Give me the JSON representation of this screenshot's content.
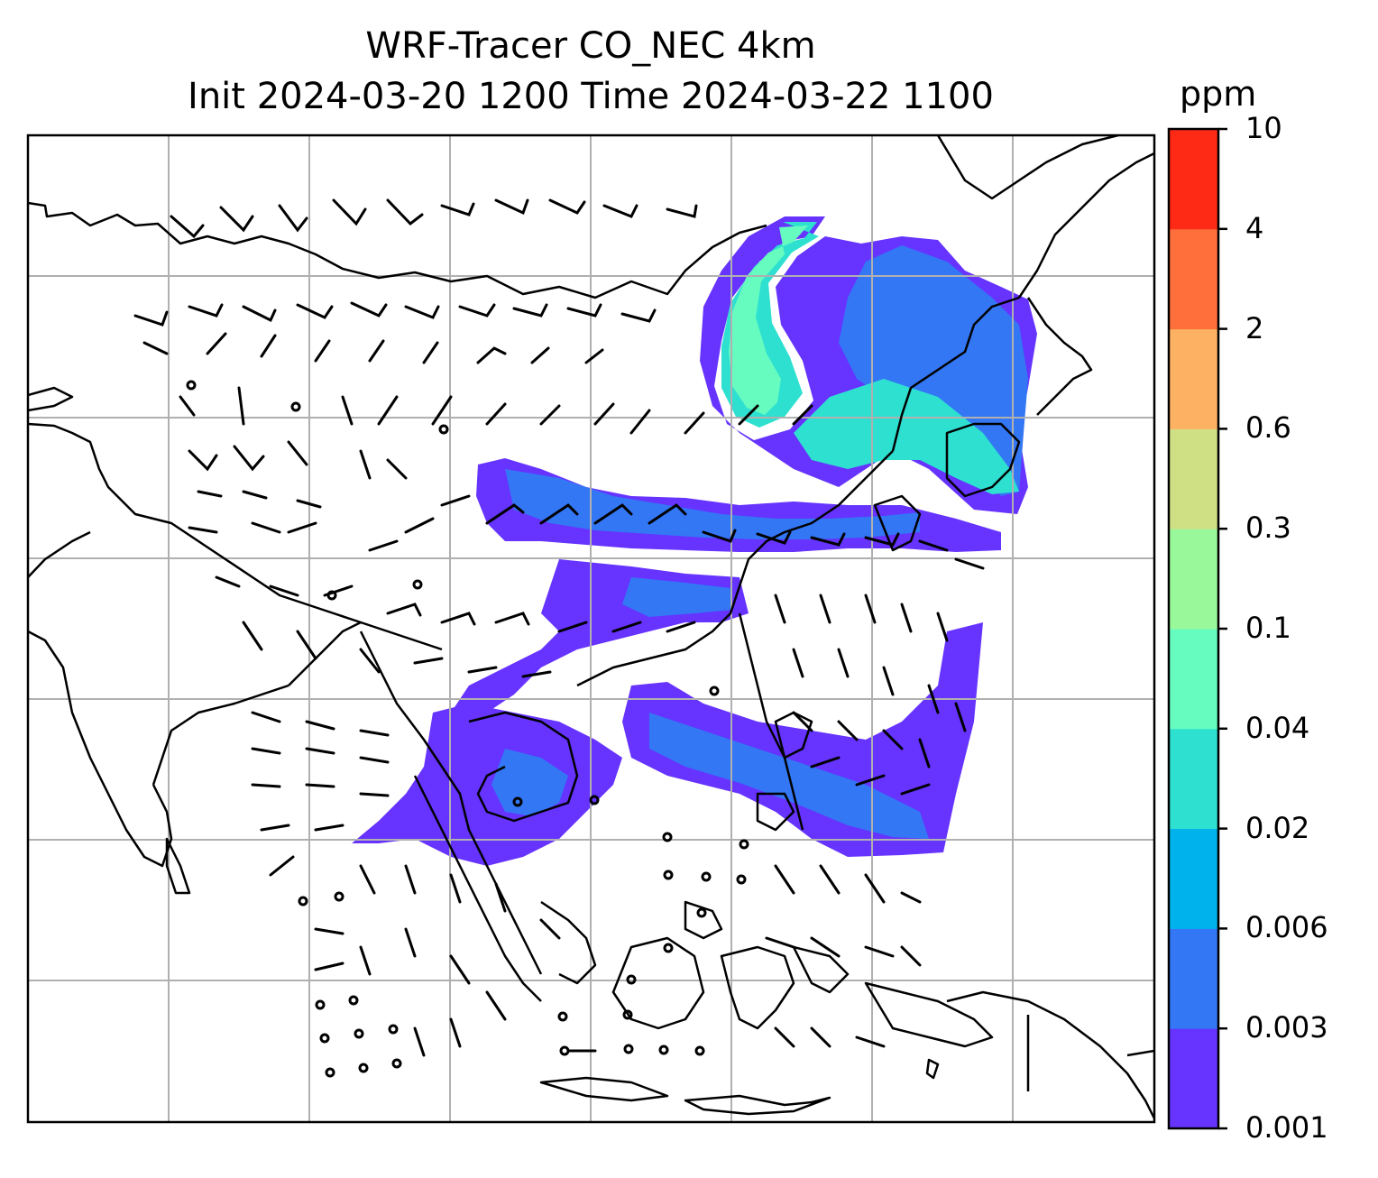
{
  "title": {
    "line1": "WRF-Tracer CO_NEC 4km",
    "line2": "Init 2024-03-20 1200 Time 2024-03-22 1100"
  },
  "colorbar": {
    "units": "ppm",
    "ticks": [
      "0.001",
      "0.003",
      "0.006",
      "0.02",
      "0.04",
      "0.1",
      "0.3",
      "0.6",
      "2",
      "4",
      "10"
    ],
    "colors": [
      "#6633ff",
      "#3377f5",
      "#00b2ec",
      "#2ee0d0",
      "#66fcc0",
      "#99f99a",
      "#cfe084",
      "#fdb163",
      "#ff6f3b",
      "#ff2a16"
    ]
  },
  "map": {
    "grid_color": "#b0b0b0",
    "coastline_color": "#000000",
    "wind_barb_color": "#000000"
  }
}
